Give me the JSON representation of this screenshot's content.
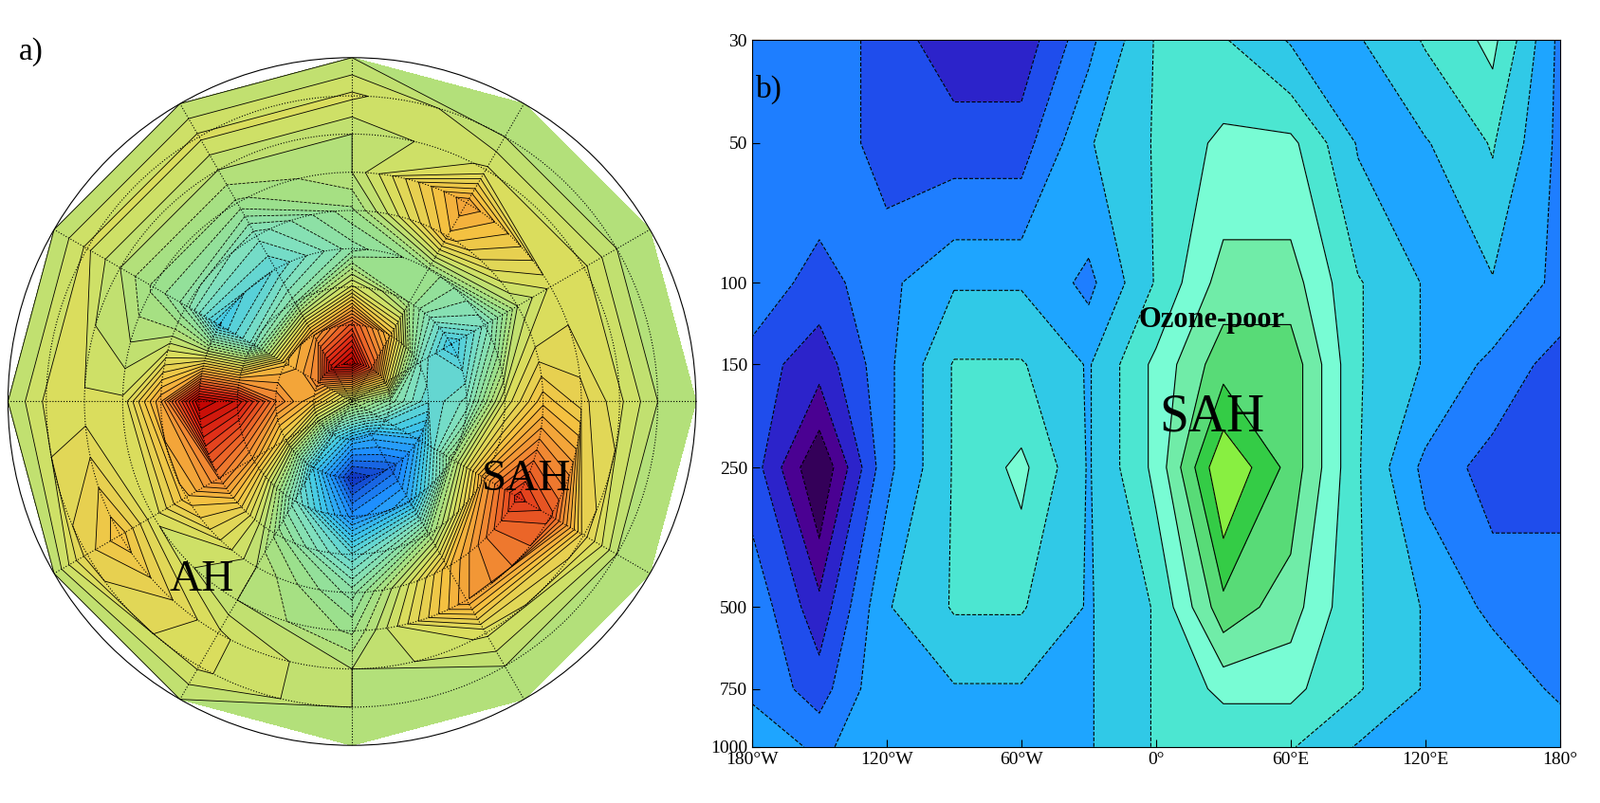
{
  "chart_data": [
    {
      "type": "polar_contour",
      "title": "a)",
      "tick_labels": false,
      "annotations": [
        {
          "text": "SAH"
        },
        {
          "text": "AH"
        }
      ],
      "lon": [
        0,
        30,
        60,
        90,
        120,
        150,
        180,
        210,
        240,
        270,
        300,
        330
      ],
      "lat": [
        90,
        80,
        70,
        60,
        50,
        40,
        30,
        20,
        10,
        0
      ],
      "cells": [
        [
          0,
          0,
          0,
          0,
          0,
          0,
          0,
          0,
          0,
          0,
          0,
          0
        ],
        [
          -2,
          2,
          6,
          9,
          8,
          5,
          3,
          0,
          -4,
          -6,
          -6,
          -4
        ],
        [
          -4,
          -3,
          3,
          6,
          4,
          3,
          5,
          2,
          -5,
          -9,
          -8,
          -6
        ],
        [
          -3,
          -5,
          -1,
          1,
          -2,
          -3,
          8,
          4,
          -3,
          -7,
          -6,
          -1
        ],
        [
          1,
          -3,
          -1,
          -2,
          -4,
          -5,
          9,
          5,
          -1,
          -4,
          -1,
          4
        ],
        [
          3,
          0,
          3,
          -1,
          -3,
          -2,
          4,
          3,
          0,
          -2,
          3,
          7
        ],
        [
          2,
          1,
          4,
          0,
          -1,
          -1,
          1,
          1,
          0,
          -1,
          4,
          6
        ],
        [
          1,
          1,
          1,
          0,
          0,
          0,
          1,
          3,
          1,
          0,
          1,
          2
        ],
        [
          0,
          0,
          0,
          1,
          1,
          1,
          1,
          2,
          1,
          0,
          0,
          0
        ],
        [
          0,
          0,
          0,
          0,
          0,
          0,
          0,
          0,
          0,
          0,
          0,
          0
        ]
      ]
    },
    {
      "type": "contour",
      "title": "b)",
      "log": "y",
      "annotations": [
        {
          "text": "Ozone-poor"
        },
        {
          "text": "SAH"
        }
      ],
      "x": [
        -180,
        -150,
        -120,
        -90,
        -60,
        -30,
        0,
        30,
        60,
        90,
        120,
        150,
        180
      ],
      "y": [
        30,
        50,
        100,
        150,
        250,
        500,
        750,
        1000
      ],
      "cells": [
        [
          -2,
          -2,
          -3,
          -4,
          -4,
          -2,
          0,
          0,
          -1,
          -1,
          0,
          1,
          -2
        ],
        [
          -2,
          -2,
          -3,
          -3,
          -3,
          -1,
          0,
          1,
          1,
          -1,
          -1,
          0,
          -2
        ],
        [
          -2,
          -3,
          -2,
          -1,
          -1,
          -2,
          0,
          2,
          2,
          0,
          -1,
          -1,
          -2
        ],
        [
          -3,
          -4,
          -2,
          0,
          0,
          -1,
          1,
          3,
          3,
          0,
          -1,
          -2,
          -3
        ],
        [
          -3,
          -6,
          -2,
          0,
          1,
          -1,
          1,
          5,
          3,
          0,
          -2,
          -3,
          -3
        ],
        [
          -2,
          -4,
          -1,
          0,
          0,
          -1,
          0,
          3,
          2,
          0,
          -1,
          -2,
          -2
        ],
        [
          -2,
          -3,
          -1,
          -1,
          -1,
          -1,
          0,
          1,
          1,
          0,
          -1,
          -1,
          -2
        ],
        [
          -1,
          -2,
          -1,
          -1,
          -1,
          -1,
          0,
          0,
          0,
          -1,
          -1,
          -1,
          -1
        ]
      ],
      "xlim": [
        -180,
        180
      ],
      "xticks": [
        {
          "value": -180,
          "label": "180°W"
        },
        {
          "value": -120,
          "label": "120°W"
        },
        {
          "value": -60,
          "label": "60°W"
        },
        {
          "value": 0,
          "label": "0°"
        },
        {
          "value": 60,
          "label": "60°E"
        },
        {
          "value": 120,
          "label": "120°E"
        },
        {
          "value": 180,
          "label": "180°"
        }
      ],
      "ylim": [
        1000,
        30
      ],
      "yticks": [
        30,
        50,
        100,
        150,
        250,
        500,
        750,
        1000
      ]
    }
  ]
}
